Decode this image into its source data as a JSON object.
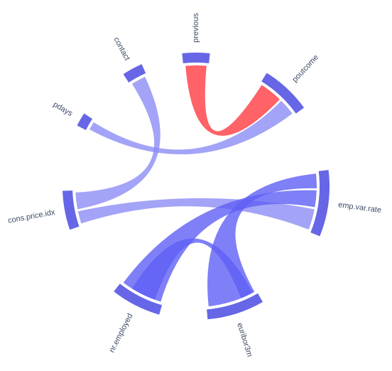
{
  "chart_data": {
    "type": "chord",
    "title": "",
    "nodes": [
      {
        "id": "previous",
        "label": "previous"
      },
      {
        "id": "poutcome",
        "label": "poutcome"
      },
      {
        "id": "emp_var_rate",
        "label": "emp.var.rate"
      },
      {
        "id": "euribor3m",
        "label": "euribor3m"
      },
      {
        "id": "nr_employed",
        "label": "nr.employed"
      },
      {
        "id": "cons_price_idx",
        "label": "cons.price.idx"
      },
      {
        "id": "pdays",
        "label": "pdays"
      },
      {
        "id": "contact",
        "label": "contact"
      }
    ],
    "links": [
      {
        "source": "previous",
        "target": "poutcome",
        "value": 0.9,
        "sign": "negative"
      },
      {
        "source": "pdays",
        "target": "poutcome",
        "value": 0.5,
        "sign": "positive"
      },
      {
        "source": "contact",
        "target": "cons_price_idx",
        "value": 0.6,
        "sign": "positive"
      },
      {
        "source": "cons_price_idx",
        "target": "emp_var_rate",
        "value": 0.78,
        "sign": "positive"
      },
      {
        "source": "emp_var_rate",
        "target": "nr_employed",
        "value": 0.91,
        "sign": "positive"
      },
      {
        "source": "emp_var_rate",
        "target": "euribor3m",
        "value": 0.97,
        "sign": "positive"
      },
      {
        "source": "euribor3m",
        "target": "nr_employed",
        "value": 0.95,
        "sign": "positive"
      }
    ],
    "colors": {
      "positive_link": "#8c8cf5",
      "strong_link": "#5f5ff5",
      "negative_link": "#ff5a5f",
      "node_arc": "#6666e6"
    }
  }
}
